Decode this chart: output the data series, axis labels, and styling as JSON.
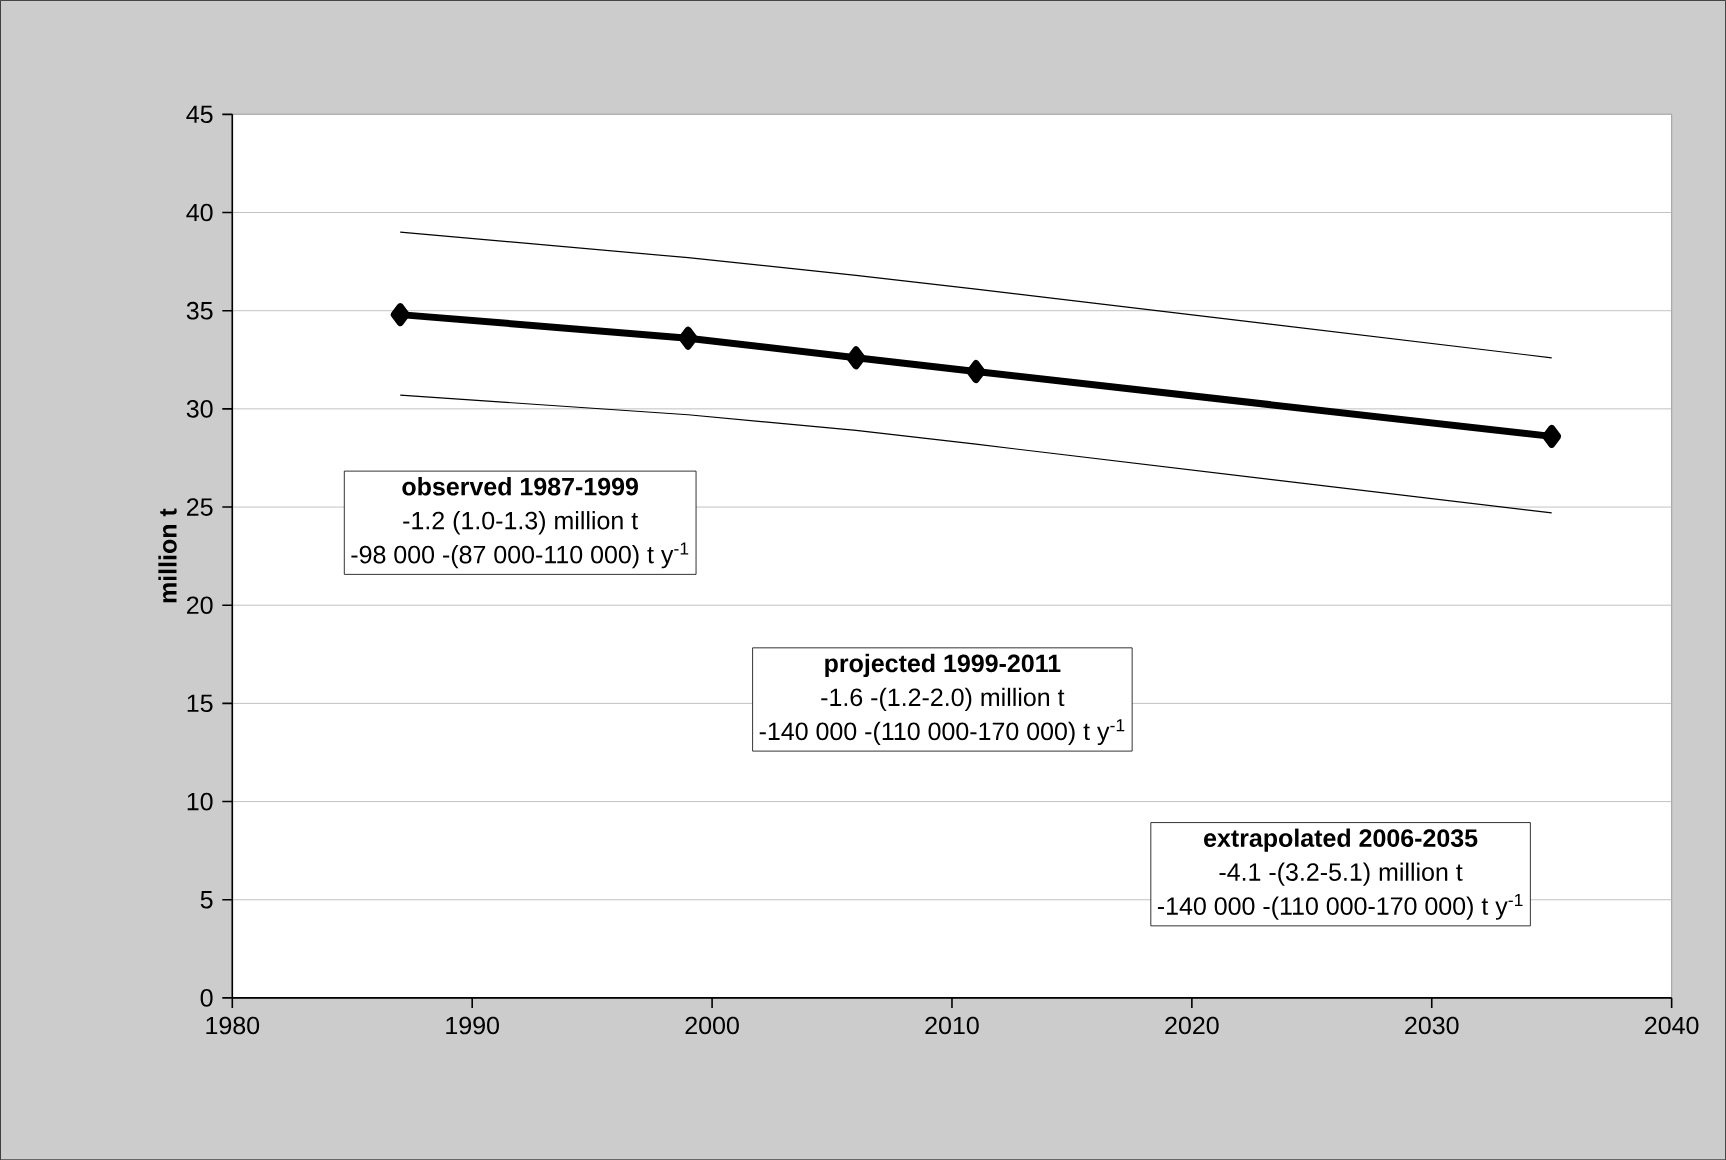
{
  "chart_data": {
    "type": "line",
    "ylabel": "million t",
    "x": [
      1987,
      1999,
      2006,
      2011,
      2035
    ],
    "series": [
      {
        "color": "#000000",
        "marker": "diamond",
        "values": [
          34.8,
          33.6,
          32.6,
          31.9,
          28.6
        ]
      },
      {
        "color": "#000000",
        "marker": "none",
        "values": [
          30.7,
          29.7,
          28.9,
          28.2,
          24.7
        ]
      },
      {
        "color": "#000000",
        "marker": "none",
        "values": [
          39.0,
          37.7,
          36.8,
          36.1,
          32.6
        ]
      }
    ],
    "xlim": [
      1980,
      2040
    ],
    "xticks": [
      1980,
      1990,
      2000,
      2010,
      2020,
      2030,
      2040
    ],
    "ylim": [
      0,
      45
    ],
    "yticks": [
      0,
      5,
      10,
      15,
      20,
      25,
      30,
      35,
      40,
      45
    ],
    "grid": "y",
    "annotations": [
      "observed 1987-1999",
      "-1.2 (1.0-1.3) million t",
      "-98 000 -(87 000-110 000) t y$^{-1}$",
      "projected 1999-2011",
      "-1.6 -(1.2-2.0) million t",
      "-140 000 -(110 000-170 000) t y$^{-1}$",
      "extrapolated 2006-2035",
      "-4.1 -(3.2-5.1) million t",
      "-140 000 -(110 000-170 000) t y$^{-1}$"
    ]
  }
}
